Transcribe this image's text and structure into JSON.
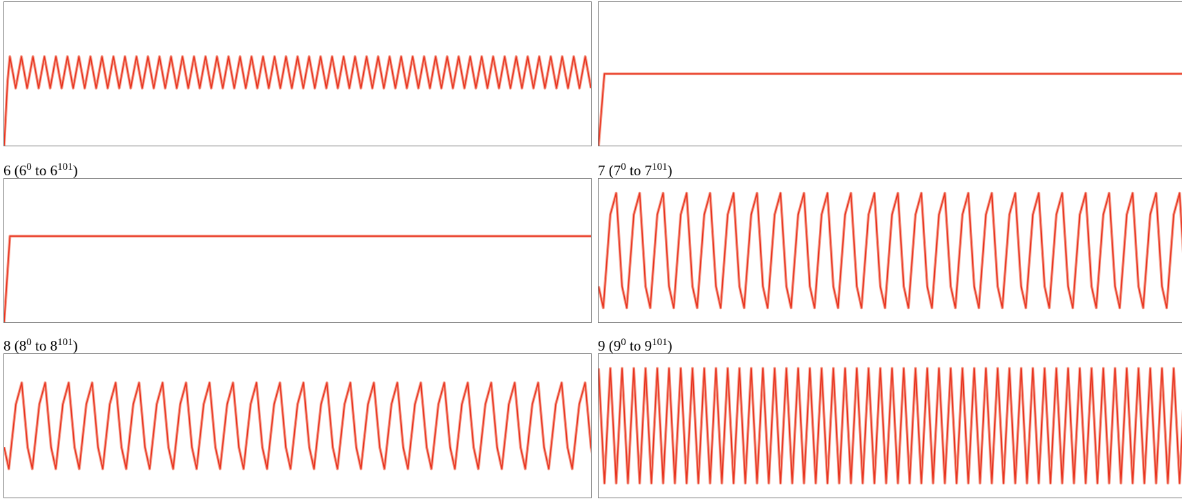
{
  "colors": {
    "line": "#e8321e",
    "halo": "#f5a08f"
  },
  "chart_data": [
    {
      "type": "line",
      "title": "",
      "ylim": [
        0,
        1
      ],
      "series": [
        {
          "shape": "rise_then_zigzag",
          "x": [
            0,
            1,
            2,
            3,
            4,
            5,
            6,
            7,
            8,
            9,
            10,
            11,
            12
          ],
          "values": [
            0,
            0.45,
            0.6,
            0.62,
            0.4,
            0.62,
            0.4,
            0.62,
            0.4,
            0.62,
            0.4,
            0.62,
            0.4
          ],
          "cycles": 50,
          "low": 0.4,
          "high": 0.62
        }
      ]
    },
    {
      "type": "line",
      "title": "",
      "ylim": [
        0,
        1
      ],
      "series": [
        {
          "shape": "rise_then_flat",
          "x": [
            0,
            1,
            101
          ],
          "values": [
            0,
            0.5,
            0.5
          ]
        }
      ]
    },
    {
      "type": "line",
      "title": "6 (6^0 to 6^101)",
      "ylim": [
        0,
        1
      ],
      "series": [
        {
          "shape": "rise_then_flat",
          "x": [
            0,
            1,
            101
          ],
          "values": [
            0,
            0.6,
            0.6
          ]
        }
      ]
    },
    {
      "type": "line",
      "title": "7 (7^0 to 7^101)",
      "ylim": [
        0,
        1
      ],
      "series": [
        {
          "shape": "oscillation",
          "cycles": 25,
          "low": 0.1,
          "high": 0.9
        }
      ]
    },
    {
      "type": "line",
      "title": "8 (8^0 to 8^101)",
      "ylim": [
        0,
        1
      ],
      "series": [
        {
          "shape": "oscillation",
          "cycles": 25,
          "low": 0.2,
          "high": 0.8
        }
      ]
    },
    {
      "type": "line",
      "title": "9 (9^0 to 9^101)",
      "ylim": [
        0,
        1
      ],
      "series": [
        {
          "shape": "alternating",
          "cycles": 50,
          "low": 0.1,
          "high": 0.9
        }
      ]
    }
  ],
  "labels": {
    "p3": {
      "n": "6",
      "open": " (",
      "b0": "6",
      "e0": "0",
      "to": " to ",
      "b1": "6",
      "e1": "101",
      "close": ")"
    },
    "p4": {
      "n": "7",
      "open": " (",
      "b0": "7",
      "e0": "0",
      "to": " to ",
      "b1": "7",
      "e1": "101",
      "close": ")"
    },
    "p5": {
      "n": "8",
      "open": " (",
      "b0": "8",
      "e0": "0",
      "to": " to ",
      "b1": "8",
      "e1": "101",
      "close": ")"
    },
    "p6": {
      "n": "9",
      "open": " (",
      "b0": "9",
      "e0": "0",
      "to": " to ",
      "b1": "9",
      "e1": "101",
      "close": ")"
    }
  }
}
